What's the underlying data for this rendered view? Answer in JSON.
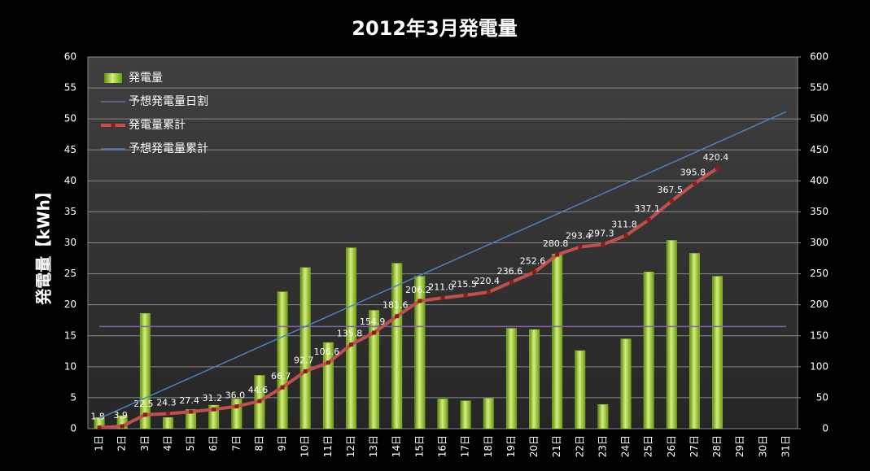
{
  "chart_data": {
    "type": "bar_line",
    "title": "2012年3月発電量",
    "y_label": "発電量【kWh】",
    "categories": [
      "1日",
      "2日",
      "3日",
      "4日",
      "5日",
      "6日",
      "7日",
      "8日",
      "9日",
      "10日",
      "11日",
      "12日",
      "13日",
      "14日",
      "15日",
      "16日",
      "17日",
      "18日",
      "19日",
      "20日",
      "21日",
      "22日",
      "23日",
      "24日",
      "25日",
      "26日",
      "27日",
      "28日",
      "29日",
      "30日",
      "31日"
    ],
    "ylim": [
      0,
      60
    ],
    "yticks": [
      0,
      5,
      10,
      15,
      20,
      25,
      30,
      35,
      40,
      45,
      50,
      55,
      60
    ],
    "y2lim": [
      0,
      600
    ],
    "y2ticks": [
      0,
      50,
      100,
      150,
      200,
      250,
      300,
      350,
      400,
      450,
      500,
      550,
      600
    ],
    "grid": true,
    "legend": "top-left",
    "series": [
      {
        "name": "発電量",
        "type": "bar",
        "color": "#8fc31f",
        "values": [
          1.8,
          2.1,
          18.6,
          1.8,
          3.1,
          3.8,
          4.8,
          8.6,
          22.1,
          26.0,
          13.9,
          29.2,
          19.1,
          26.7,
          24.6,
          4.8,
          4.5,
          4.9,
          16.2,
          16.0,
          28.2,
          12.6,
          3.9,
          14.5,
          25.3,
          30.4,
          28.3,
          24.6,
          null,
          null,
          null
        ]
      },
      {
        "name": "予想発電量日割",
        "type": "line",
        "color": "#8064a2",
        "values": [
          16.5,
          16.5,
          16.5,
          16.5,
          16.5,
          16.5,
          16.5,
          16.5,
          16.5,
          16.5,
          16.5,
          16.5,
          16.5,
          16.5,
          16.5,
          16.5,
          16.5,
          16.5,
          16.5,
          16.5,
          16.5,
          16.5,
          16.5,
          16.5,
          16.5,
          16.5,
          16.5,
          16.5,
          16.5,
          16.5,
          16.5
        ]
      },
      {
        "name": "発電量累計",
        "type": "line",
        "axis": "y2",
        "color": "#c0504d",
        "markers": true,
        "values": [
          1.8,
          3.9,
          22.5,
          24.3,
          27.4,
          31.2,
          36.0,
          44.6,
          66.7,
          92.7,
          106.6,
          135.8,
          154.9,
          181.6,
          206.2,
          211.0,
          215.5,
          220.4,
          236.6,
          252.6,
          280.8,
          293.4,
          297.3,
          311.8,
          337.1,
          367.5,
          395.8,
          420.4,
          null,
          null,
          null
        ],
        "value_labels": [
          "1.8",
          "3.9",
          "22.5",
          "24.3",
          "27.4",
          "31.2",
          "36.0",
          "44.6",
          "66.7",
          "92.7",
          "106.6",
          "135.8",
          "154.9",
          "181.6",
          "206.2",
          "211.0",
          "215.5",
          "220.4",
          "236.6",
          "252.6",
          "280.8",
          "293.4",
          "297.3",
          "311.8",
          "337.1",
          "367.5",
          "395.8",
          "420.4",
          null,
          null,
          null
        ]
      },
      {
        "name": "予想発電量累計",
        "type": "line",
        "axis": "y2",
        "color": "#4f81bd",
        "values": [
          16.5,
          33,
          49.5,
          66,
          82.5,
          99,
          115.5,
          132,
          148.5,
          165,
          181.5,
          198,
          214.5,
          231,
          247.5,
          264,
          280.5,
          297,
          313.5,
          330,
          346.5,
          363,
          379.5,
          396,
          412.5,
          429,
          445.5,
          462,
          478.5,
          495,
          511.5
        ]
      }
    ]
  }
}
